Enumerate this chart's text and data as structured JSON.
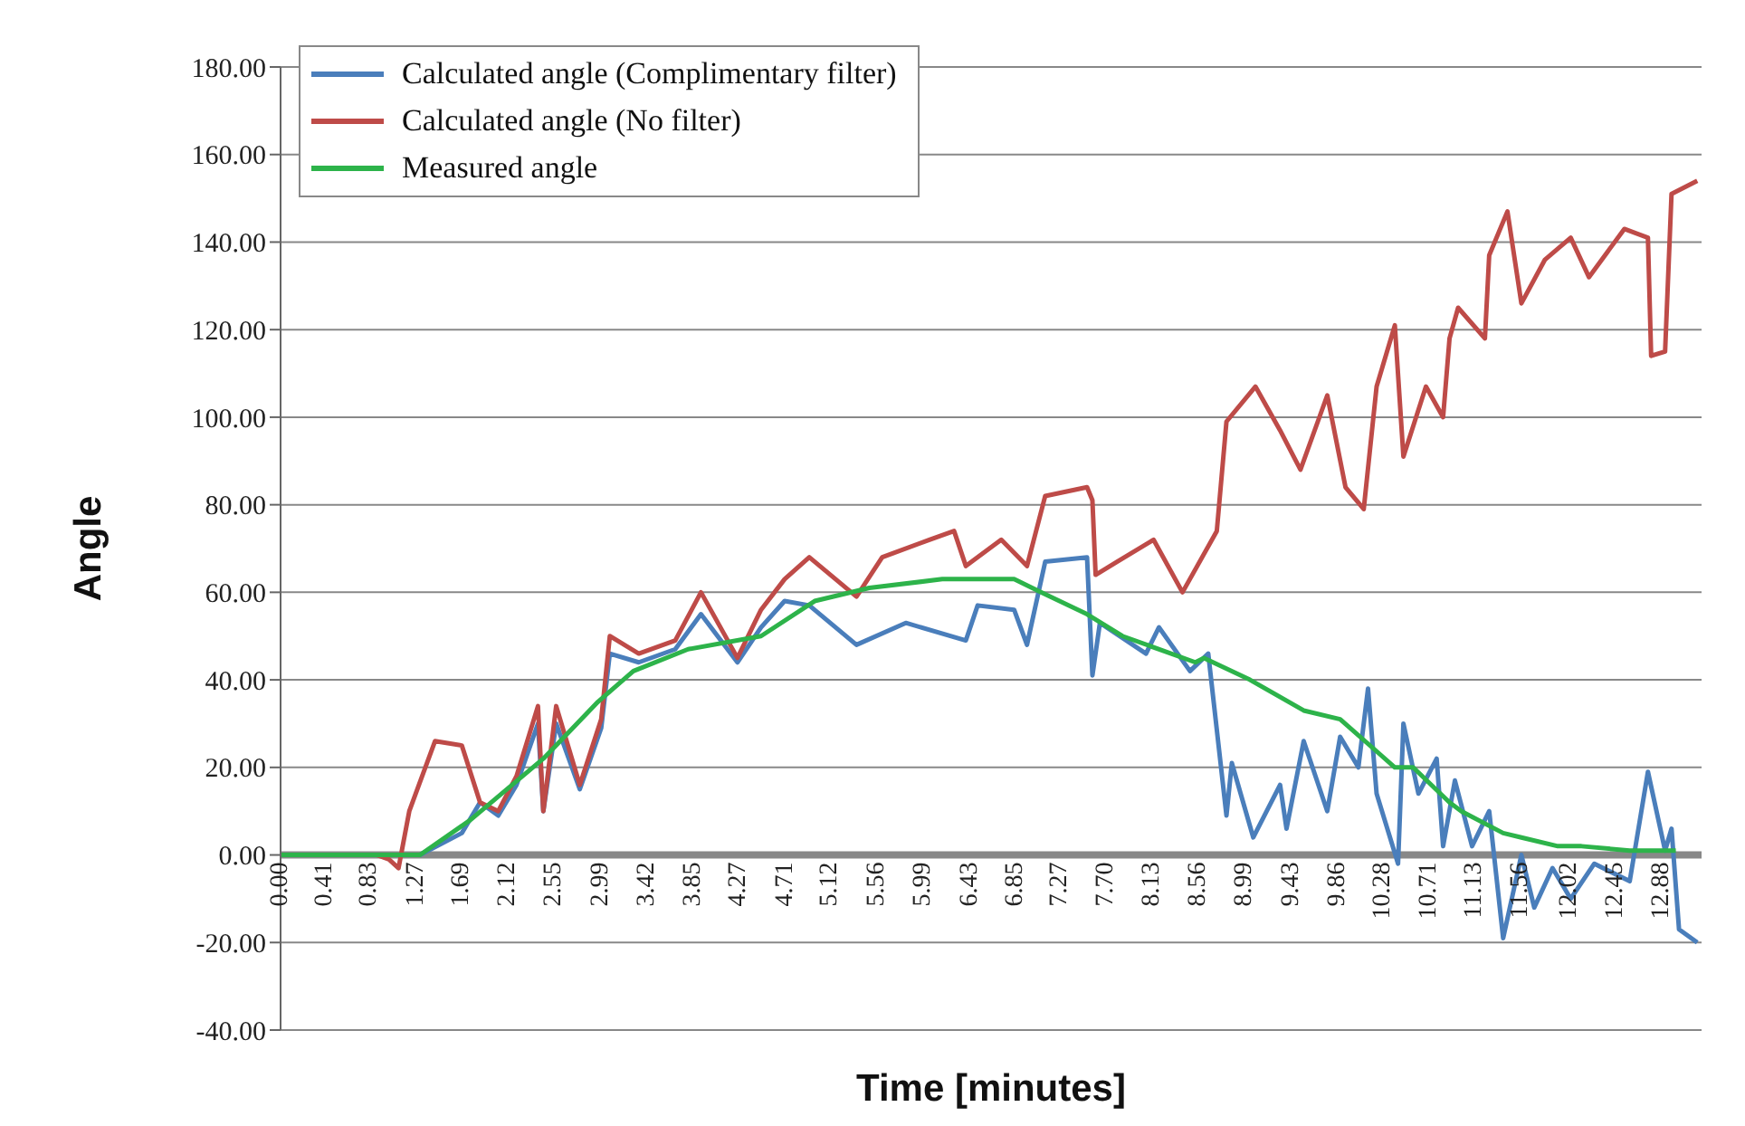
{
  "chart_data": {
    "type": "line",
    "xlabel": "Time [minutes]",
    "ylabel": "Angle",
    "legend": "top left",
    "grid": "y",
    "marker": "none",
    "line_style": "solid",
    "xlim": [
      0,
      13.25
    ],
    "ylim": [
      -40,
      180
    ],
    "xticks": [
      {
        "value": 0,
        "label": "0.00"
      },
      0.41,
      0.83,
      1.27,
      1.69,
      2.12,
      2.55,
      2.99,
      3.42,
      3.85,
      4.27,
      4.71,
      5.12,
      5.56,
      5.99,
      6.43,
      6.85,
      7.27,
      {
        "value": 7.7,
        "label": "7.70"
      },
      8.13,
      8.56,
      8.99,
      9.43,
      9.86,
      10.28,
      10.71,
      11.13,
      11.56,
      12.02,
      12.45,
      12.88
    ],
    "yticks": [
      {
        "value": -40,
        "label": "-40.00"
      },
      {
        "value": -20,
        "label": "-20.00"
      },
      {
        "value": 0,
        "label": "0.00"
      },
      {
        "value": 20,
        "label": "20.00"
      },
      {
        "value": 40,
        "label": "40.00"
      },
      {
        "value": 60,
        "label": "60.00"
      },
      {
        "value": 80,
        "label": "80.00"
      },
      {
        "value": 100,
        "label": "100.00"
      },
      {
        "value": 120,
        "label": "120.00"
      },
      {
        "value": 140,
        "label": "140.00"
      },
      {
        "value": 160,
        "label": "160.00"
      },
      {
        "value": 180,
        "label": "180.00"
      }
    ],
    "series": [
      {
        "name": "Calculated angle (Complimentary filter)",
        "color": "#4a7ebb",
        "x": [
          0,
          1.3,
          1.69,
          1.86,
          2.03,
          2.2,
          2.4,
          2.45,
          2.57,
          2.79,
          2.99,
          3.07,
          3.34,
          3.68,
          3.92,
          4.26,
          4.48,
          4.7,
          4.93,
          5.37,
          5.83,
          6.39,
          6.5,
          6.84,
          6.96,
          7.13,
          7.52,
          7.57,
          7.64,
          8.07,
          8.19,
          8.48,
          8.65,
          8.82,
          8.87,
          9.07,
          9.32,
          9.38,
          9.54,
          9.76,
          9.88,
          10.05,
          10.14,
          10.22,
          10.42,
          10.47,
          10.61,
          10.78,
          10.84,
          10.95,
          11.11,
          11.27,
          11.4,
          11.57,
          11.69,
          11.86,
          12.03,
          12.25,
          12.58,
          12.75,
          12.91,
          12.97,
          13.04,
          13.21
        ],
        "values": [
          0,
          0,
          5,
          12,
          9,
          16,
          30,
          10,
          30,
          15,
          29,
          46,
          44,
          47,
          55,
          44,
          52,
          58,
          57,
          48,
          53,
          49,
          57,
          56,
          48,
          67,
          68,
          41,
          53,
          46,
          52,
          42,
          46,
          9,
          21,
          4,
          16,
          6,
          26,
          10,
          27,
          20,
          38,
          14,
          -2,
          30,
          14,
          22,
          2,
          17,
          2,
          10,
          -19,
          0,
          -12,
          -3,
          -10,
          -2,
          -6,
          19,
          1,
          6,
          -17,
          -20
        ]
      },
      {
        "name": "Calculated angle (No filter)",
        "color": "#be4b48",
        "x": [
          0,
          0.9,
          1.01,
          1.1,
          1.2,
          1.44,
          1.69,
          1.86,
          2.03,
          2.2,
          2.4,
          2.45,
          2.57,
          2.79,
          2.99,
          3.07,
          3.34,
          3.68,
          3.92,
          4.26,
          4.48,
          4.7,
          4.93,
          5.37,
          5.61,
          6.05,
          6.28,
          6.39,
          6.72,
          6.96,
          7.13,
          7.52,
          7.57,
          7.6,
          7.8,
          8.14,
          8.41,
          8.73,
          8.82,
          9.09,
          9.32,
          9.51,
          9.76,
          9.93,
          10.1,
          10.22,
          10.39,
          10.47,
          10.68,
          10.84,
          10.9,
          10.98,
          11.23,
          11.27,
          11.44,
          11.57,
          11.79,
          12.03,
          12.2,
          12.53,
          12.75,
          12.78,
          12.91,
          12.97,
          13.21
        ],
        "values": [
          0,
          0,
          -1,
          -3,
          10,
          26,
          25,
          12,
          10,
          18,
          34,
          10,
          34,
          16,
          31,
          50,
          46,
          49,
          60,
          45,
          56,
          63,
          68,
          59,
          68,
          72,
          74,
          66,
          72,
          66,
          82,
          84,
          81,
          64,
          67,
          72,
          60,
          74,
          99,
          107,
          97,
          88,
          105,
          84,
          79,
          107,
          121,
          91,
          107,
          100,
          118,
          125,
          118,
          137,
          147,
          126,
          136,
          141,
          132,
          143,
          141,
          114,
          115,
          151,
          154
        ]
      },
      {
        "name": "Measured angle",
        "color": "#2db34a",
        "x": [
          0,
          1.3,
          1.77,
          2.45,
          2.96,
          3.29,
          3.8,
          4.48,
          4.98,
          5.49,
          6.17,
          6.84,
          7.09,
          7.52,
          7.85,
          8.53,
          8.61,
          9.04,
          9.54,
          9.88,
          10.39,
          10.56,
          10.9,
          11.01,
          11.4,
          11.57,
          11.91,
          12.13,
          12.58,
          13.01
        ],
        "values": [
          0,
          0,
          8,
          22,
          35,
          42,
          47,
          50,
          58,
          61,
          63,
          63,
          60,
          55,
          50,
          44,
          45,
          40,
          33,
          31,
          20,
          20,
          12,
          10,
          5,
          4,
          2,
          2,
          1,
          1
        ]
      }
    ]
  }
}
